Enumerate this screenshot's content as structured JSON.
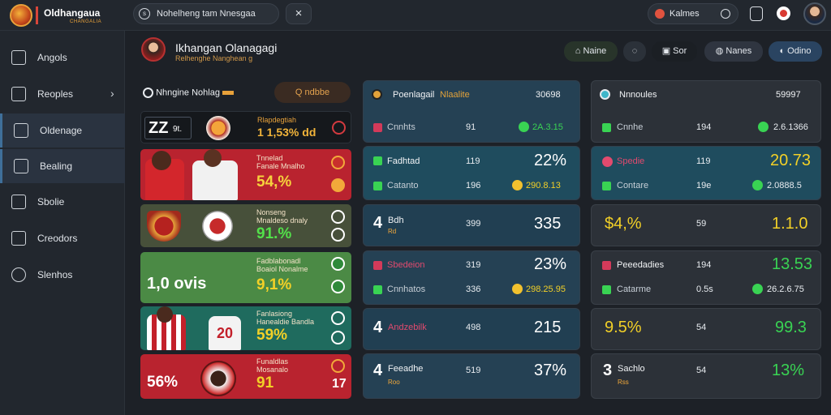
{
  "app": {
    "title": "Oldhangaua",
    "subtitle": "CHANGALIA"
  },
  "topbar": {
    "search_text": "Nohelheng tam Nnesgaa",
    "search_icon": "search-icon",
    "close_glyph": "×",
    "team_search": "Kalmes"
  },
  "sidebar": {
    "items": [
      {
        "label": "Angols",
        "icon": "home-icon"
      },
      {
        "label": "Reoples",
        "icon": "users-icon"
      },
      {
        "label": "Oldenage",
        "icon": "chart-icon"
      },
      {
        "label": "Bealing",
        "icon": "folder-icon"
      },
      {
        "label": "Sbolie",
        "icon": "export-icon"
      },
      {
        "label": "Creodors",
        "icon": "pen-icon"
      },
      {
        "label": "Slenhos",
        "icon": "ball-icon"
      }
    ]
  },
  "profile": {
    "name": "Ikhangan Olanagagi",
    "sub": "Relhenghe Nanghean g"
  },
  "header_buttons": {
    "b1": "Naine",
    "b2": "Sor",
    "b3": "Nanes",
    "b4": "Odino"
  },
  "left": {
    "title": "Nhngine Nohlag",
    "chip": "Q  ndbbe",
    "rows": [
      {
        "score": "ZZ",
        "tag": "9t.",
        "t1": "Rlapdegtiah",
        "big": "1 1,53% dd"
      },
      {
        "t1": "Tnnelad",
        "t2": "Fanale Mnalho",
        "big": "54,%"
      },
      {
        "t1": "Nonseng",
        "t2": "Mnaldeso dnaly",
        "big": "91.%"
      },
      {
        "t1": "Fadblabonadl",
        "t2": "Boaiol Nonalme",
        "big": "9,1%",
        "left_big": "1,0 ovis"
      },
      {
        "t1": "Fanlasiong",
        "t2": "Hanealdie Bandla",
        "big": "59%"
      },
      {
        "t1": "Funaldlas",
        "t2": "Mosanalo",
        "big": "91",
        "left_big": "56%"
      }
    ]
  },
  "mid": {
    "title": "Poenlagail",
    "title_accent": "Nlaalite",
    "title_val": "30698",
    "cards": [
      {
        "a_label": "Cnnhts",
        "a_mid": "91",
        "a_val": "2A.3.15",
        "b_label": "",
        "b_mid": "",
        "b_val": ""
      },
      {
        "a_label": "Fadhtad",
        "a_mid": "119",
        "a_val": "22%",
        "b_label": "Catanto",
        "b_mid": "196",
        "b_val": "290.8.13"
      },
      {
        "a_label": "Bdh",
        "a_sub": "Rd",
        "a_num": "4",
        "a_mid": "399",
        "a_val": "335"
      },
      {
        "a_label": "Sbedeion",
        "a_mid": "319",
        "a_val": "23%",
        "b_label": "Cnnhatos",
        "b_mid": "336",
        "b_val": "298.25.95"
      },
      {
        "a_label": "Andzebilk",
        "a_num": "4",
        "a_mid": "498",
        "a_val": "215"
      },
      {
        "a_label": "Feeadhe",
        "a_sub": "Roo",
        "a_num": "4",
        "a_mid": "519",
        "a_val": "37%"
      }
    ]
  },
  "right": {
    "title": "Nnnoules",
    "title_val": "59997",
    "cards": [
      {
        "a_label": "Cnnhe",
        "a_mid": "194",
        "a_val": "2.6.1366"
      },
      {
        "a_label": "Spedie",
        "a_mid": "119",
        "a_val": "20.73",
        "b_label": "Contare",
        "b_mid": "19e",
        "b_val": "2.0888.5"
      },
      {
        "a_label": "$4,%",
        "a_mid": "59",
        "a_val": "1.1.0"
      },
      {
        "a_label": "Peeedadies",
        "a_mid": "194",
        "a_val": "13.53",
        "b_label": "Catarme",
        "b_mid": "0.5s",
        "b_val": "26.2.6.75"
      },
      {
        "a_label": "9.5%",
        "a_mid": "54",
        "a_val": "99.3"
      },
      {
        "a_label": "Sachlo",
        "a_sub": "Rss",
        "a_num": "3",
        "a_mid": "54",
        "a_val": "13%"
      }
    ]
  },
  "colors": {
    "accent": "#3f6f9a",
    "green": "#39d353",
    "yellow": "#f2d027",
    "red": "#d33a3f"
  }
}
